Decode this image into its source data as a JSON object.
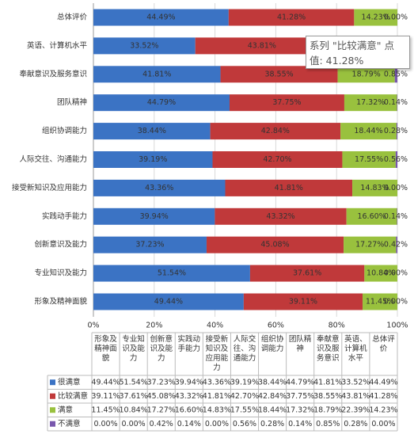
{
  "chart_data": {
    "type": "stacked_bar_horizontal",
    "categories": [
      "形象及精神面貌",
      "专业知识及能力",
      "创新意识及能力",
      "实践动手能力",
      "接受新知识及应用能力",
      "人际交往、沟通能力",
      "组织协调能力",
      "团队精神",
      "奉献意识及服务意识",
      "英语、计算机水平",
      "总体评价"
    ],
    "series": [
      {
        "name": "很满意",
        "color": "#3b73c4",
        "values": [
          49.44,
          51.54,
          37.23,
          39.94,
          43.36,
          39.19,
          38.44,
          44.79,
          41.81,
          33.52,
          44.49
        ],
        "value_labels": [
          "49.44%",
          "51.54%",
          "37.23%",
          "39.94%",
          "43.36%",
          "39.19%",
          "38.44%",
          "44.79%",
          "41.81%",
          "33.52%",
          "44.49%"
        ]
      },
      {
        "name": "比较满意",
        "color": "#c0393a",
        "values": [
          39.11,
          37.61,
          45.08,
          43.32,
          41.81,
          42.7,
          42.84,
          37.75,
          38.55,
          43.81,
          41.28
        ],
        "value_labels": [
          "39.11%",
          "37.61%",
          "45.08%",
          "43.32%",
          "41.81%",
          "42.70%",
          "42.84%",
          "37.75%",
          "38.55%",
          "43.81%",
          "41.28%"
        ]
      },
      {
        "name": "满意",
        "color": "#99c13e",
        "values": [
          11.45,
          10.84,
          17.27,
          16.6,
          14.83,
          17.55,
          18.44,
          17.32,
          18.79,
          22.39,
          14.23
        ],
        "value_labels": [
          "11.45%",
          "10.84%",
          "17.27%",
          "16.60%",
          "14.83%",
          "17.55%",
          "18.44%",
          "17.32%",
          "18.79%",
          "22.39%",
          "14.23%"
        ]
      },
      {
        "name": "不满意",
        "color": "#7857ad",
        "values": [
          0.0,
          0.0,
          0.42,
          0.14,
          0.0,
          0.56,
          0.28,
          0.14,
          0.85,
          0.28,
          0.0
        ],
        "value_labels": [
          "0.00%",
          "0.00%",
          "0.42%",
          "0.14%",
          "0.00%",
          "0.56%",
          "0.28%",
          "0.14%",
          "0.85%",
          "0.28%",
          "0.00%"
        ]
      }
    ],
    "xlim": [
      0,
      100
    ],
    "xticks": [
      {
        "value": 0,
        "label": "0%"
      },
      {
        "value": 20,
        "label": "20%"
      },
      {
        "value": 40,
        "label": "40%"
      },
      {
        "value": 60,
        "label": "60%"
      },
      {
        "value": 80,
        "label": "80%"
      },
      {
        "value": 100,
        "label": "100%"
      }
    ],
    "grid": true,
    "tooltip": {
      "line1": "系列 \"比较满意\" 点",
      "line2": "值: 41.28%"
    }
  }
}
